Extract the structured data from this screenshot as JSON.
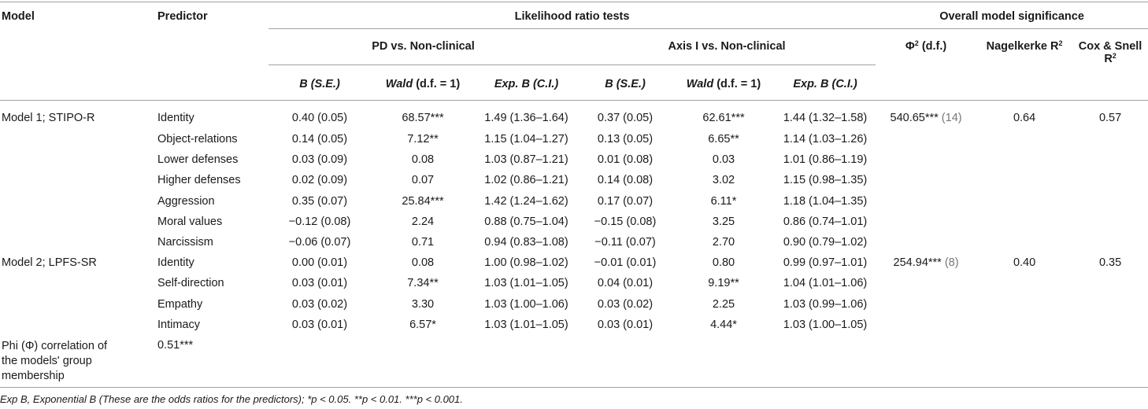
{
  "headers": {
    "model": "Model",
    "predictor": "Predictor",
    "lrt": "Likelihood ratio tests",
    "overall": "Overall model significance",
    "pd_group": "PD vs. Non-clinical",
    "axis_group": "Axis I vs. Non-clinical",
    "phi_df": "Φ",
    "phi_df_sup": "2",
    "phi_df_suffix": " (d.f.)",
    "nagelkerke": "Nagelkerke R",
    "nagelkerke_sup": "2",
    "coxsnell": "Cox & Snell R",
    "coxsnell_sup": "2",
    "b_se": "B (S.E.)",
    "wald": "Wald",
    "wald_suffix": " (d.f. = 1)",
    "expb": "Exp. B (C.I.)"
  },
  "models": [
    {
      "name": "Model 1; STIPO-R",
      "phi": "540.65***",
      "phi_df": " (14)",
      "nagelkerke": "0.64",
      "coxsnell": "0.57",
      "rows": [
        {
          "predictor": "Identity",
          "pd_b": "0.40 (0.05)",
          "pd_wald": "68.57***",
          "pd_exp": "1.49 (1.36–1.64)",
          "ax_b": "0.37 (0.05)",
          "ax_wald": "62.61***",
          "ax_exp": "1.44 (1.32–1.58)"
        },
        {
          "predictor": "Object-relations",
          "pd_b": "0.14 (0.05)",
          "pd_wald": "7.12**",
          "pd_exp": "1.15 (1.04–1.27)",
          "ax_b": "0.13 (0.05)",
          "ax_wald": "6.65**",
          "ax_exp": "1.14 (1.03–1.26)"
        },
        {
          "predictor": "Lower defenses",
          "pd_b": "0.03 (0.09)",
          "pd_wald": "0.08",
          "pd_exp": "1.03 (0.87–1.21)",
          "ax_b": "0.01 (0.08)",
          "ax_wald": "0.03",
          "ax_exp": "1.01 (0.86–1.19)"
        },
        {
          "predictor": "Higher defenses",
          "pd_b": "0.02 (0.09)",
          "pd_wald": "0.07",
          "pd_exp": "1.02 (0.86–1.21)",
          "ax_b": "0.14 (0.08)",
          "ax_wald": "3.02",
          "ax_exp": "1.15 (0.98–1.35)"
        },
        {
          "predictor": "Aggression",
          "pd_b": "0.35 (0.07)",
          "pd_wald": "25.84***",
          "pd_exp": "1.42 (1.24–1.62)",
          "ax_b": "0.17 (0.07)",
          "ax_wald": "6.11*",
          "ax_exp": "1.18 (1.04–1.35)"
        },
        {
          "predictor": "Moral values",
          "pd_b": "−0.12 (0.08)",
          "pd_wald": "2.24",
          "pd_exp": "0.88 (0.75–1.04)",
          "ax_b": "−0.15 (0.08)",
          "ax_wald": "3.25",
          "ax_exp": "0.86 (0.74–1.01)"
        },
        {
          "predictor": "Narcissism",
          "pd_b": "−0.06 (0.07)",
          "pd_wald": "0.71",
          "pd_exp": "0.94 (0.83–1.08)",
          "ax_b": "−0.11 (0.07)",
          "ax_wald": "2.70",
          "ax_exp": "0.90 (0.79–1.02)"
        }
      ]
    },
    {
      "name": "Model 2; LPFS-SR",
      "phi": "254.94***",
      "phi_df": " (8)",
      "nagelkerke": "0.40",
      "coxsnell": "0.35",
      "rows": [
        {
          "predictor": "Identity",
          "pd_b": "0.00 (0.01)",
          "pd_wald": "0.08",
          "pd_exp": "1.00 (0.98–1.02)",
          "ax_b": "−0.01 (0.01)",
          "ax_wald": "0.80",
          "ax_exp": "0.99 (0.97–1.01)"
        },
        {
          "predictor": "Self-direction",
          "pd_b": "0.03 (0.01)",
          "pd_wald": "7.34**",
          "pd_exp": "1.03 (1.01–1.05)",
          "ax_b": "0.04 (0.01)",
          "ax_wald": "9.19**",
          "ax_exp": "1.04 (1.01–1.06)"
        },
        {
          "predictor": "Empathy",
          "pd_b": "0.03 (0.02)",
          "pd_wald": "3.30",
          "pd_exp": "1.03 (1.00–1.06)",
          "ax_b": "0.03 (0.02)",
          "ax_wald": "2.25",
          "ax_exp": "1.03 (0.99–1.06)"
        },
        {
          "predictor": "Intimacy",
          "pd_b": "0.03 (0.01)",
          "pd_wald": "6.57*",
          "pd_exp": "1.03 (1.01–1.05)",
          "ax_b": "0.03 (0.01)",
          "ax_wald": "4.44*",
          "ax_exp": "1.03 (1.00–1.05)"
        }
      ]
    }
  ],
  "phi_row": {
    "label": "Phi (Φ) correlation of the models' group membership",
    "value": "0.51***"
  },
  "footnote": "Exp B, Exponential B (These are the odds ratios for the predictors); *p < 0.05. **p < 0.01. ***p < 0.001."
}
